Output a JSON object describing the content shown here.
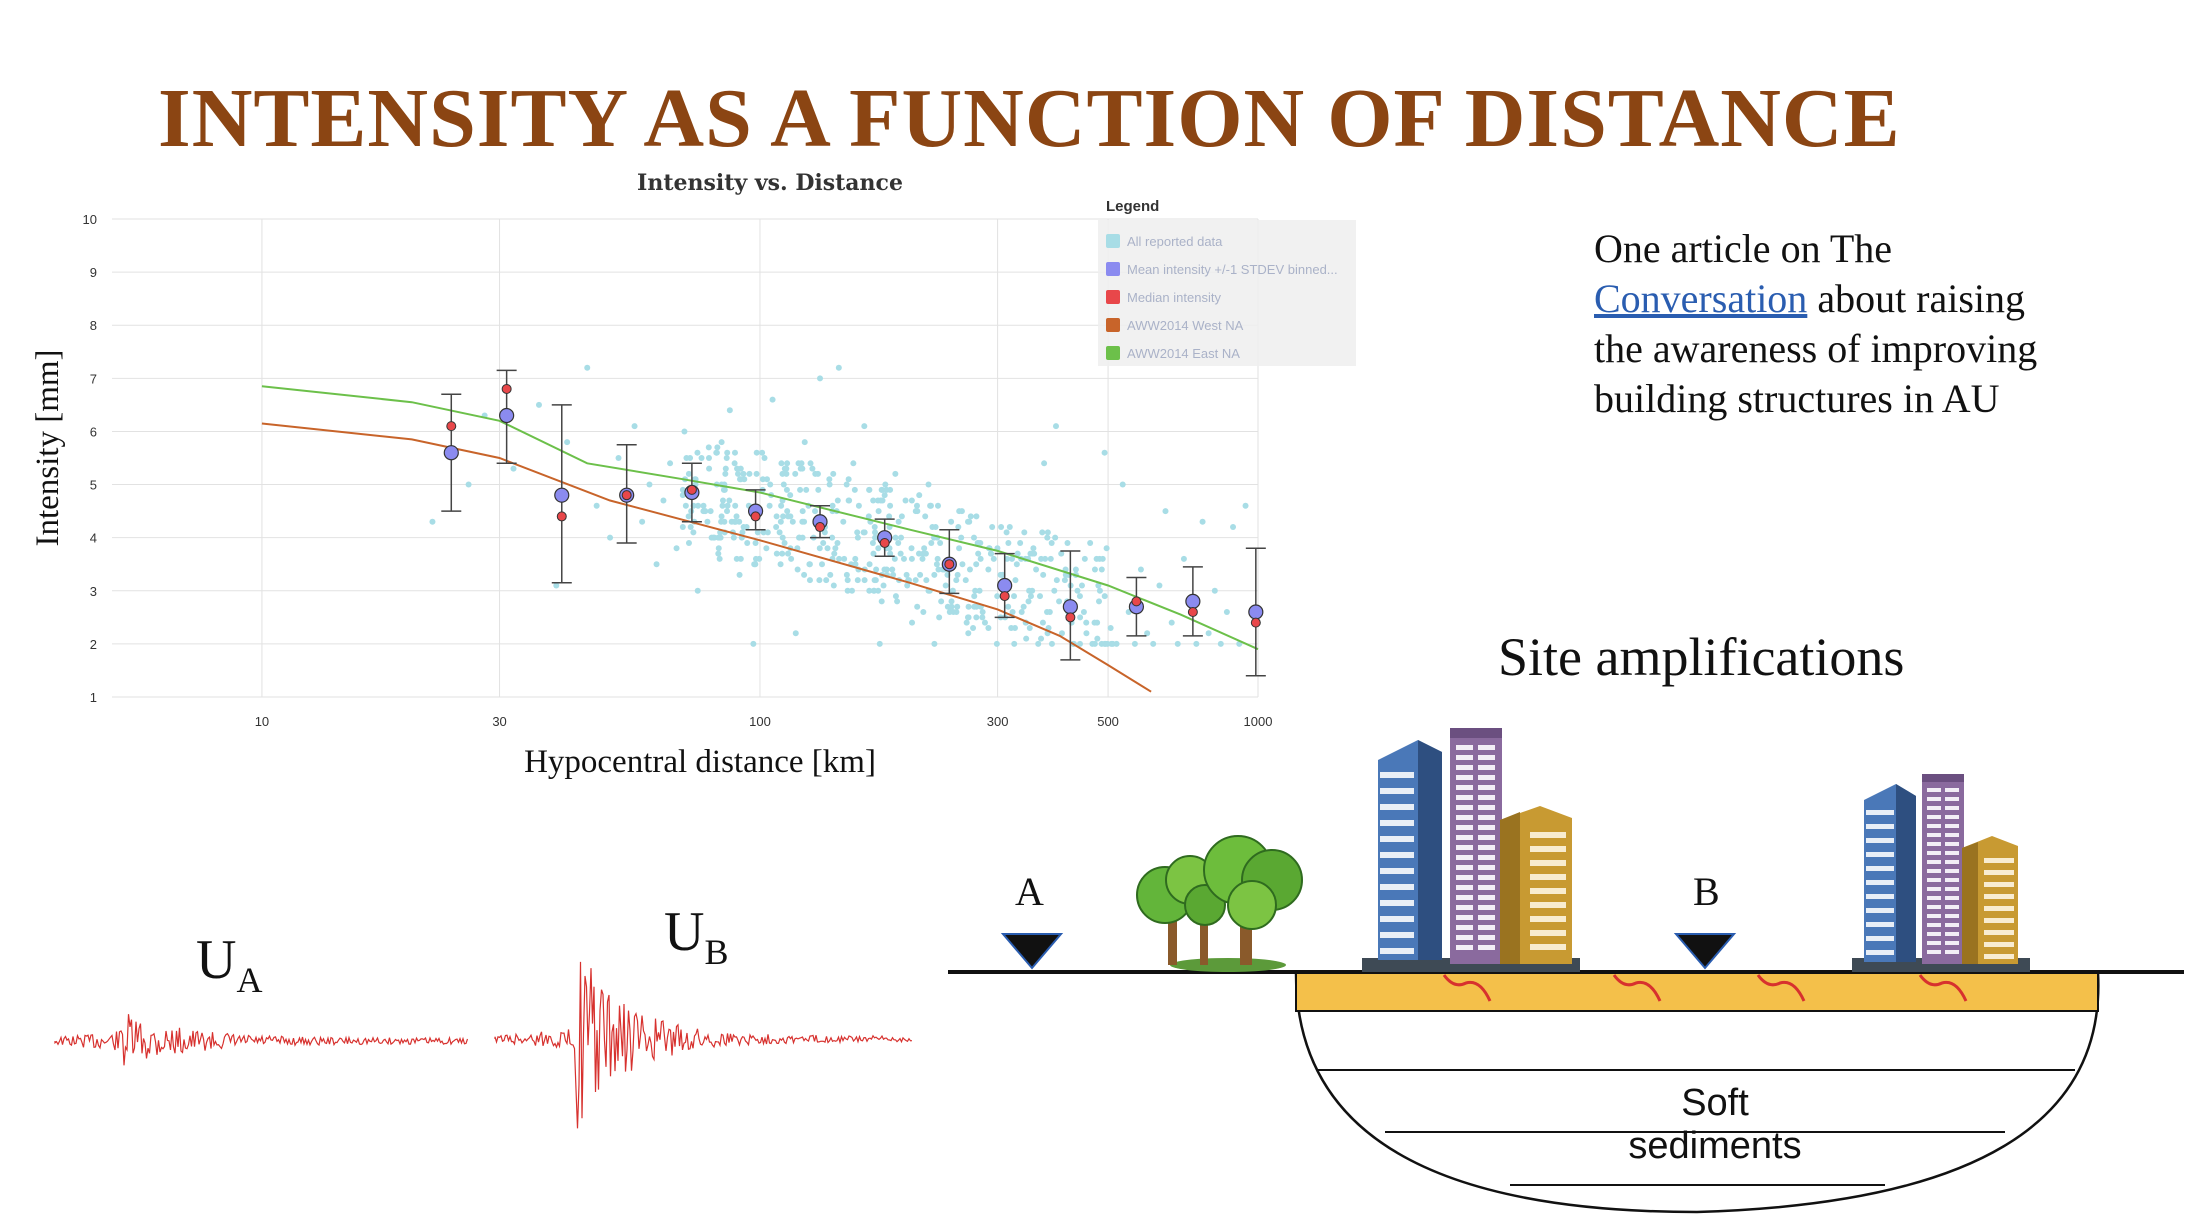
{
  "slide": {
    "title": "INTENSITY AS A FUNCTION OF DISTANCE",
    "title_color": "#8B4513"
  },
  "chart_data": {
    "type": "scatter",
    "title": "Intensity vs. Distance",
    "xlabel": "Hypocentral distance [km]",
    "ylabel": "Intensity [mm]",
    "xscale": "log",
    "xlim": [
      5,
      1000
    ],
    "ylim": [
      1,
      10
    ],
    "x_ticks": [
      10,
      30,
      100,
      300,
      500,
      1000
    ],
    "x_tick_labels": [
      "10",
      "30",
      "100",
      "300",
      "500",
      "1000"
    ],
    "y_ticks": [
      1,
      2,
      3,
      4,
      5,
      6,
      7,
      8,
      9,
      10
    ],
    "y_tick_labels": [
      "1",
      "2",
      "3",
      "4",
      "5",
      "6",
      "7",
      "8",
      "9",
      "10"
    ],
    "grid": true,
    "legend": {
      "title": "Legend",
      "placement": "top-right",
      "entries": [
        {
          "label": "All reported data",
          "color": "#a8dde6"
        },
        {
          "label": "Mean intensity +/-1 STDEV binned...",
          "color": "#8b8bf0"
        },
        {
          "label": "Median intensity",
          "color": "#e8474a"
        },
        {
          "label": "AWW2014 West NA",
          "color": "#c8642a"
        },
        {
          "label": "AWW2014 East NA",
          "color": "#6cc04a"
        }
      ]
    },
    "series": [
      {
        "name": "Mean intensity +/-1 STDEV binned...",
        "color": "#8b8bf0",
        "points": [
          {
            "x": 24,
            "y": 5.6,
            "low": 4.5,
            "high": 6.7
          },
          {
            "x": 31,
            "y": 6.3,
            "low": 5.4,
            "high": 7.15
          },
          {
            "x": 40,
            "y": 4.8,
            "low": 3.15,
            "high": 6.5
          },
          {
            "x": 54,
            "y": 4.8,
            "low": 3.9,
            "high": 5.75
          },
          {
            "x": 73,
            "y": 4.85,
            "low": 4.3,
            "high": 5.4
          },
          {
            "x": 98,
            "y": 4.5,
            "low": 4.15,
            "high": 4.9
          },
          {
            "x": 132,
            "y": 4.3,
            "low": 4.0,
            "high": 4.6
          },
          {
            "x": 178,
            "y": 4.0,
            "low": 3.65,
            "high": 4.35
          },
          {
            "x": 240,
            "y": 3.5,
            "low": 2.95,
            "high": 4.15
          },
          {
            "x": 310,
            "y": 3.1,
            "low": 2.5,
            "high": 3.7
          },
          {
            "x": 420,
            "y": 2.7,
            "low": 1.7,
            "high": 3.75
          },
          {
            "x": 570,
            "y": 2.7,
            "low": 2.15,
            "high": 3.25
          },
          {
            "x": 740,
            "y": 2.8,
            "low": 2.15,
            "high": 3.45
          },
          {
            "x": 990,
            "y": 2.6,
            "low": 1.4,
            "high": 3.8
          }
        ]
      },
      {
        "name": "Median intensity",
        "color": "#e8474a",
        "points": [
          {
            "x": 24,
            "y": 6.1
          },
          {
            "x": 31,
            "y": 6.8
          },
          {
            "x": 40,
            "y": 4.4
          },
          {
            "x": 54,
            "y": 4.8
          },
          {
            "x": 73,
            "y": 4.9
          },
          {
            "x": 98,
            "y": 4.4
          },
          {
            "x": 132,
            "y": 4.2
          },
          {
            "x": 178,
            "y": 3.9
          },
          {
            "x": 240,
            "y": 3.5
          },
          {
            "x": 310,
            "y": 2.9
          },
          {
            "x": 420,
            "y": 2.5
          },
          {
            "x": 570,
            "y": 2.8
          },
          {
            "x": 740,
            "y": 2.6
          },
          {
            "x": 990,
            "y": 2.4
          }
        ]
      },
      {
        "name": "AWW2014 West NA",
        "color": "#c8642a",
        "curve": [
          {
            "x": 10,
            "y": 6.15
          },
          {
            "x": 20,
            "y": 5.85
          },
          {
            "x": 30,
            "y": 5.5
          },
          {
            "x": 50,
            "y": 4.7
          },
          {
            "x": 100,
            "y": 3.95
          },
          {
            "x": 200,
            "y": 3.15
          },
          {
            "x": 300,
            "y": 2.65
          },
          {
            "x": 400,
            "y": 2.15
          },
          {
            "x": 500,
            "y": 1.6
          },
          {
            "x": 610,
            "y": 1.1
          }
        ]
      },
      {
        "name": "AWW2014 East NA",
        "color": "#6cc04a",
        "curve": [
          {
            "x": 10,
            "y": 6.85
          },
          {
            "x": 20,
            "y": 6.55
          },
          {
            "x": 30,
            "y": 6.2
          },
          {
            "x": 45,
            "y": 5.4
          },
          {
            "x": 70,
            "y": 5.1
          },
          {
            "x": 100,
            "y": 4.85
          },
          {
            "x": 200,
            "y": 4.15
          },
          {
            "x": 300,
            "y": 3.75
          },
          {
            "x": 500,
            "y": 3.1
          },
          {
            "x": 700,
            "y": 2.55
          },
          {
            "x": 1000,
            "y": 1.9
          }
        ]
      },
      {
        "name": "All reported data",
        "color": "#a8dde6",
        "points_summary": "Scattered reports roughly 2-7.2 intensity from ~23 km to ~950 km hypocentral distance, densest between 70 and 500 km",
        "points": [
          {
            "x": 22,
            "y": 4.3
          },
          {
            "x": 26,
            "y": 5.0
          },
          {
            "x": 28,
            "y": 6.3
          },
          {
            "x": 32,
            "y": 5.3
          },
          {
            "x": 36,
            "y": 6.5
          },
          {
            "x": 39,
            "y": 3.1
          },
          {
            "x": 41,
            "y": 5.8
          },
          {
            "x": 45,
            "y": 7.2
          },
          {
            "x": 47,
            "y": 4.6
          },
          {
            "x": 50,
            "y": 4.0
          },
          {
            "x": 52,
            "y": 5.5
          },
          {
            "x": 56,
            "y": 6.1
          },
          {
            "x": 58,
            "y": 4.3
          },
          {
            "x": 60,
            "y": 5.0
          },
          {
            "x": 62,
            "y": 3.5
          },
          {
            "x": 64,
            "y": 4.7
          },
          {
            "x": 66,
            "y": 5.4
          },
          {
            "x": 68,
            "y": 3.8
          },
          {
            "x": 70,
            "y": 4.2
          },
          {
            "x": 72,
            "y": 5.2
          },
          {
            "x": 75,
            "y": 3.0
          },
          {
            "x": 77,
            "y": 4.5
          },
          {
            "x": 79,
            "y": 5.5
          },
          {
            "x": 81,
            "y": 4.0
          },
          {
            "x": 83,
            "y": 3.6
          },
          {
            "x": 85,
            "y": 4.9
          },
          {
            "x": 87,
            "y": 6.4
          },
          {
            "x": 89,
            "y": 4.3
          },
          {
            "x": 91,
            "y": 3.3
          },
          {
            "x": 93,
            "y": 5.1
          },
          {
            "x": 95,
            "y": 4.6
          },
          {
            "x": 97,
            "y": 2.0
          },
          {
            "x": 99,
            "y": 4.1
          },
          {
            "x": 101,
            "y": 5.6
          },
          {
            "x": 103,
            "y": 3.8
          },
          {
            "x": 106,
            "y": 6.6
          },
          {
            "x": 108,
            "y": 4.4
          },
          {
            "x": 110,
            "y": 3.5
          },
          {
            "x": 113,
            "y": 5.2
          },
          {
            "x": 115,
            "y": 4.8
          },
          {
            "x": 118,
            "y": 2.2
          },
          {
            "x": 120,
            "y": 4.0
          },
          {
            "x": 123,
            "y": 5.8
          },
          {
            "x": 126,
            "y": 3.2
          },
          {
            "x": 129,
            "y": 4.5
          },
          {
            "x": 132,
            "y": 7.0
          },
          {
            "x": 135,
            "y": 4.1
          },
          {
            "x": 138,
            "y": 5.0
          },
          {
            "x": 141,
            "y": 3.7
          },
          {
            "x": 144,
            "y": 7.2
          },
          {
            "x": 147,
            "y": 4.3
          },
          {
            "x": 150,
            "y": 3.0
          },
          {
            "x": 154,
            "y": 5.4
          },
          {
            "x": 158,
            "y": 4.6
          },
          {
            "x": 162,
            "y": 6.1
          },
          {
            "x": 166,
            "y": 3.5
          },
          {
            "x": 170,
            "y": 4.2
          },
          {
            "x": 174,
            "y": 2.0
          },
          {
            "x": 178,
            "y": 4.8
          },
          {
            "x": 182,
            "y": 3.8
          },
          {
            "x": 187,
            "y": 5.2
          },
          {
            "x": 192,
            "y": 4.0
          },
          {
            "x": 197,
            "y": 3.3
          },
          {
            "x": 202,
            "y": 2.4
          },
          {
            "x": 207,
            "y": 4.5
          },
          {
            "x": 212,
            "y": 3.6
          },
          {
            "x": 218,
            "y": 5.0
          },
          {
            "x": 224,
            "y": 2.0
          },
          {
            "x": 230,
            "y": 3.9
          },
          {
            "x": 236,
            "y": 3.1
          },
          {
            "x": 242,
            "y": 4.3
          },
          {
            "x": 248,
            "y": 2.6
          },
          {
            "x": 255,
            "y": 3.5
          },
          {
            "x": 262,
            "y": 2.2
          },
          {
            "x": 269,
            "y": 4.0
          },
          {
            "x": 276,
            "y": 3.0
          },
          {
            "x": 283,
            "y": 2.4
          },
          {
            "x": 291,
            "y": 3.7
          },
          {
            "x": 299,
            "y": 2.0
          },
          {
            "x": 307,
            "y": 3.3
          },
          {
            "x": 315,
            "y": 2.7
          },
          {
            "x": 324,
            "y": 2.0
          },
          {
            "x": 333,
            "y": 3.9
          },
          {
            "x": 342,
            "y": 2.4
          },
          {
            "x": 352,
            "y": 3.0
          },
          {
            "x": 362,
            "y": 2.0
          },
          {
            "x": 372,
            "y": 5.4
          },
          {
            "x": 382,
            "y": 2.6
          },
          {
            "x": 393,
            "y": 6.1
          },
          {
            "x": 404,
            "y": 2.2
          },
          {
            "x": 415,
            "y": 3.3
          },
          {
            "x": 427,
            "y": 2.0
          },
          {
            "x": 439,
            "y": 2.9
          },
          {
            "x": 452,
            "y": 2.4
          },
          {
            "x": 465,
            "y": 2.0
          },
          {
            "x": 478,
            "y": 3.1
          },
          {
            "x": 492,
            "y": 5.6
          },
          {
            "x": 506,
            "y": 2.3
          },
          {
            "x": 520,
            "y": 2.0
          },
          {
            "x": 535,
            "y": 5.0
          },
          {
            "x": 550,
            "y": 2.6
          },
          {
            "x": 566,
            "y": 2.0
          },
          {
            "x": 582,
            "y": 3.4
          },
          {
            "x": 599,
            "y": 2.2
          },
          {
            "x": 616,
            "y": 2.0
          },
          {
            "x": 634,
            "y": 3.1
          },
          {
            "x": 652,
            "y": 4.5
          },
          {
            "x": 671,
            "y": 2.4
          },
          {
            "x": 690,
            "y": 2.0
          },
          {
            "x": 710,
            "y": 3.6
          },
          {
            "x": 731,
            "y": 2.8
          },
          {
            "x": 752,
            "y": 2.0
          },
          {
            "x": 774,
            "y": 4.3
          },
          {
            "x": 796,
            "y": 2.2
          },
          {
            "x": 819,
            "y": 3.0
          },
          {
            "x": 842,
            "y": 2.0
          },
          {
            "x": 866,
            "y": 2.6
          },
          {
            "x": 891,
            "y": 4.2
          },
          {
            "x": 917,
            "y": 2.0
          },
          {
            "x": 944,
            "y": 4.6
          }
        ]
      }
    ]
  },
  "article": {
    "line1": "One article on The",
    "link_text": "Conversation",
    "line2_rest": " about raising",
    "line3": "the awareness of improving",
    "line4": "building structures in AU"
  },
  "site": {
    "title": "Site amplifications",
    "sediment_label": "Soft sediments",
    "station_a": "A",
    "station_b": "B"
  },
  "waveforms": {
    "a_main": "U",
    "a_sub": "A",
    "b_main": "U",
    "b_sub": "B",
    "color": "#d7312e"
  }
}
